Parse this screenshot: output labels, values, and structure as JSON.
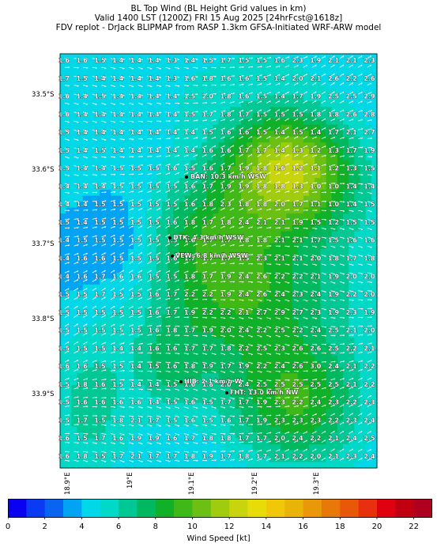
{
  "titles": {
    "line1": "BL Top Wind (BL Height Grid values in km)",
    "line2": "Valid 1400 LST (1200Z) FRI 15 Aug 2025 [24hrFcst@1618z]",
    "line3": "FDV replot - DrJack BLIPMAP from RASP 1.3km GFSA-Initiated WRF-ARW model"
  },
  "lat_labels": [
    "33.5°S",
    "33.6°S",
    "33.7°S",
    "33.8°S",
    "33.9°S"
  ],
  "lon_labels": [
    "18.9°E",
    "19°E",
    "19.1°E",
    "19.2°E",
    "19.3°E"
  ],
  "annotations": {
    "ban": "BAN: 10.3 km/h WSW",
    "dtk": "DTK: 4.3 km/h WSW",
    "vew": "VEW: 6.8 km/h WSW",
    "hib": "HIB: 2.1 km/h W",
    "fht": "FHT: 13.0 km/h NW"
  },
  "grid_values": [
    [
      "1.6",
      "1.6",
      "1.5",
      "1.4",
      "1.4",
      "1.4",
      "1.3",
      "1.4",
      "1.5",
      "1.7",
      "1.5",
      "1.5",
      "1.6",
      "2.3",
      "1.9",
      "2.1",
      "2.1",
      "2.3"
    ],
    [
      "1.7",
      "1.5",
      "1.4",
      "1.4",
      "1.4",
      "1.4",
      "1.3",
      "1.6",
      "1.8",
      "1.6",
      "1.6",
      "1.5",
      "1.4",
      "2.0",
      "2.1",
      "2.6",
      "2.2",
      "2.6"
    ],
    [
      "1.6",
      "1.4",
      "1.5",
      "1.4",
      "1.4",
      "1.4",
      "1.4",
      "1.5",
      "2.0",
      "1.8",
      "1.6",
      "1.5",
      "1.4",
      "1.7",
      "1.9",
      "2.5",
      "2.5",
      "2.9"
    ],
    [
      "1.6",
      "1.4",
      "1.4",
      "1.4",
      "1.4",
      "1.4",
      "1.4",
      "1.5",
      "1.7",
      "1.8",
      "1.7",
      "1.5",
      "1.5",
      "1.5",
      "1.8",
      "1.8",
      "2.6",
      "2.8"
    ],
    [
      "1.5",
      "1.4",
      "1.4",
      "1.4",
      "1.4",
      "1.4",
      "1.4",
      "1.4",
      "1.5",
      "1.6",
      "1.6",
      "1.5",
      "1.4",
      "1.5",
      "1.4",
      "1.7",
      "2.1",
      "2.7"
    ],
    [
      "1.5",
      "1.4",
      "1.5",
      "1.4",
      "1.4",
      "1.4",
      "1.4",
      "1.4",
      "1.6",
      "1.6",
      "1.7",
      "1.7",
      "1.4",
      "1.3",
      "1.2",
      "1.3",
      "1.7",
      "1.9"
    ],
    [
      "1.5",
      "1.4",
      "1.4",
      "1.5",
      "1.5",
      "1.5",
      "1.6",
      "1.5",
      "1.6",
      "1.7",
      "1.9",
      "1.8",
      "1.6",
      "1.2",
      "1.1",
      "1.2",
      "1.3",
      "1.5"
    ],
    [
      "1.4",
      "1.4",
      "1.4",
      "1.5",
      "1.5",
      "1.5",
      "1.5",
      "1.6",
      "1.7",
      "1.9",
      "1.9",
      "1.8",
      "1.8",
      "1.3",
      "1.0",
      "1.0",
      "1.4",
      "1.4"
    ],
    [
      "1.4",
      "1.4",
      "1.5",
      "1.5",
      "1.5",
      "1.5",
      "1.5",
      "1.6",
      "1.8",
      "2.3",
      "1.8",
      "1.8",
      "2.0",
      "1.7",
      "1.1",
      "1.0",
      "1.4",
      "1.5"
    ],
    [
      "1.5",
      "1.4",
      "1.5",
      "1.5",
      "1.5",
      "1.5",
      "1.6",
      "1.8",
      "1.7",
      "1.8",
      "2.4",
      "2.1",
      "2.1",
      "1.9",
      "1.5",
      "1.2",
      "1.5",
      "1.5"
    ],
    [
      "1.4",
      "1.5",
      "1.5",
      "1.5",
      "1.5",
      "1.5",
      "1.5",
      "1.6",
      "1.7",
      "1.7",
      "1.8",
      "1.8",
      "2.1",
      "2.1",
      "1.7",
      "1.5",
      "1.6",
      "1.6"
    ],
    [
      "1.4",
      "1.6",
      "1.6",
      "1.5",
      "1.5",
      "1.5",
      "1.6",
      "1.7",
      "1.7",
      "1.7",
      "1.5",
      "2.3",
      "2.1",
      "2.1",
      "2.0",
      "1.8",
      "1.7",
      "1.8"
    ],
    [
      "1.4",
      "1.6",
      "1.7",
      "1.6",
      "1.6",
      "1.5",
      "1.5",
      "1.8",
      "1.7",
      "1.9",
      "2.4",
      "2.6",
      "2.2",
      "2.2",
      "2.1",
      "1.9",
      "2.0",
      "2.0"
    ],
    [
      "1.5",
      "1.5",
      "1.7",
      "1.5",
      "1.5",
      "1.6",
      "1.7",
      "2.2",
      "2.2",
      "1.9",
      "2.4",
      "2.6",
      "2.4",
      "2.3",
      "2.4",
      "1.9",
      "2.2",
      "2.0"
    ],
    [
      "1.5",
      "1.5",
      "1.5",
      "1.5",
      "1.5",
      "1.6",
      "1.7",
      "1.9",
      "2.2",
      "2.2",
      "2.1",
      "2.7",
      "2.9",
      "2.7",
      "2.3",
      "1.9",
      "2.3",
      "1.9"
    ],
    [
      "1.5",
      "1.5",
      "1.5",
      "1.5",
      "1.5",
      "1.6",
      "1.8",
      "1.7",
      "1.9",
      "2.0",
      "2.4",
      "2.2",
      "2.5",
      "2.2",
      "2.4",
      "2.5",
      "2.1",
      "2.0"
    ],
    [
      "1.5",
      "1.5",
      "1.5",
      "1.4",
      "1.4",
      "1.6",
      "1.6",
      "1.7",
      "1.7",
      "1.8",
      "2.2",
      "2.5",
      "2.3",
      "2.6",
      "2.6",
      "2.5",
      "2.2",
      "2.1"
    ],
    [
      "1.6",
      "1.6",
      "1.5",
      "1.5",
      "1.4",
      "1.5",
      "1.6",
      "1.8",
      "1.9",
      "1.7",
      "1.9",
      "2.2",
      "2.4",
      "2.6",
      "3.0",
      "2.4",
      "2.1",
      "2.2"
    ],
    [
      "1.5",
      "1.8",
      "1.6",
      "1.5",
      "1.4",
      "1.4",
      "1.5",
      "1.6",
      "1.8",
      "2.0",
      "2.4",
      "2.5",
      "2.5",
      "2.5",
      "2.5",
      "2.5",
      "2.1",
      "2.2"
    ],
    [
      "1.5",
      "1.6",
      "1.6",
      "1.6",
      "1.6",
      "1.4",
      "1.5",
      "1.6",
      "1.5",
      "1.7",
      "1.7",
      "1.9",
      "2.3",
      "2.2",
      "2.4",
      "2.3",
      "2.2",
      "2.3"
    ],
    [
      "1.5",
      "1.7",
      "1.5",
      "1.8",
      "2.1",
      "1.7",
      "1.5",
      "1.6",
      "1.5",
      "1.6",
      "1.7",
      "1.9",
      "2.3",
      "2.3",
      "2.3",
      "2.2",
      "2.3",
      "2.4"
    ],
    [
      "1.6",
      "1.5",
      "1.7",
      "1.6",
      "1.9",
      "1.9",
      "1.6",
      "1.7",
      "1.8",
      "1.8",
      "1.7",
      "1.7",
      "2.0",
      "2.4",
      "2.2",
      "2.1",
      "2.4",
      "2.5"
    ],
    [
      "1.6",
      "1.8",
      "1.5",
      "1.7",
      "2.1",
      "1.7",
      "1.7",
      "1.8",
      "1.9",
      "1.7",
      "1.8",
      "1.7",
      "2.1",
      "2.2",
      "2.0",
      "2.1",
      "2.3",
      "2.4"
    ]
  ],
  "colorbar": {
    "label": "Wind Speed [kt]",
    "ticks": [
      "0",
      "2",
      "4",
      "6",
      "8",
      "10",
      "12",
      "14",
      "16",
      "18",
      "20",
      "22"
    ],
    "colors": [
      "#0a00f2",
      "#0a3af2",
      "#0a64f2",
      "#00a4f2",
      "#00d8e8",
      "#00d8c8",
      "#00c894",
      "#00b860",
      "#10b028",
      "#40b818",
      "#6cc014",
      "#a0cc10",
      "#c8d40c",
      "#e8dc08",
      "#f0c808",
      "#e8b408",
      "#e89808",
      "#e87808",
      "#e85808",
      "#e83010",
      "#e00010",
      "#c00010",
      "#b00020"
    ],
    "max_kt": 23
  },
  "wind_field": {
    "units": "kt",
    "speed_range": [
      2,
      14
    ]
  }
}
